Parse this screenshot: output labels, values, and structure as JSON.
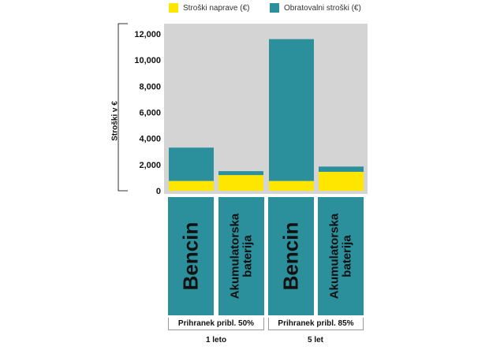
{
  "legend": [
    {
      "label": "Stroški naprave (€)",
      "color": "#ffe600"
    },
    {
      "label": "Obratovalni stroški (€)",
      "color": "#2b8f9c"
    }
  ],
  "colors": {
    "plot_bg": "#d4d4d4",
    "device": "#ffe600",
    "operating": "#2b8f9c"
  },
  "chart_data": {
    "type": "bar",
    "stacked": true,
    "ylabel": "Stroški v €",
    "ylim": [
      0,
      12500
    ],
    "yticks": [
      0,
      2000,
      4000,
      6000,
      8000,
      10000,
      12000
    ],
    "ytick_labels": [
      "0",
      "2,000",
      "4,000",
      "6,000",
      "8,000",
      "10,000",
      "12,000"
    ],
    "categories": [
      "Bencin",
      "Akumulatorska baterija",
      "Bencin",
      "Akumulatorska baterija"
    ],
    "series": [
      {
        "name": "Stroški naprave (€)",
        "values": [
          750,
          1200,
          750,
          1450
        ]
      },
      {
        "name": "Obratovalni stroški (€)",
        "values": [
          2550,
          300,
          10850,
          400
        ]
      }
    ],
    "groups": [
      {
        "savings": "Prihranek pribl. 50%",
        "period": "1 leto"
      },
      {
        "savings": "Prihranek pribl. 85%",
        "period": "5 let"
      }
    ]
  },
  "category_labels": [
    "Bencin",
    "Akumulatorska\nbaterija",
    "Bencin",
    "Akumulatorska\nbaterija"
  ]
}
